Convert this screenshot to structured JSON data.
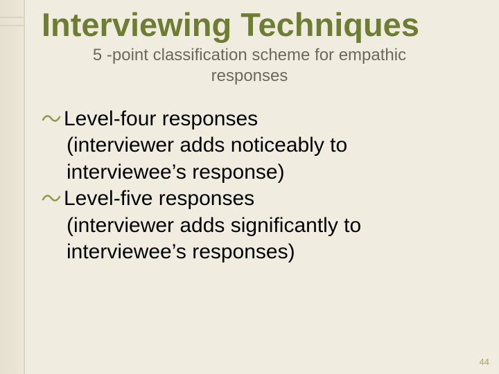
{
  "title": "Interviewing Techniques",
  "subtitle_line1": "5 -point classification scheme for empathic",
  "subtitle_line2": "responses",
  "bullets": [
    {
      "heading": "Level-four responses",
      "paren_line1": "(interviewer adds noticeably to",
      "paren_line2": "interviewee’s response)"
    },
    {
      "heading": "Level-five responses",
      "paren_line1": "(interviewer adds significantly to",
      "paren_line2": "interviewee’s responses)"
    }
  ],
  "bullet_glyph": "་",
  "page_number": "44",
  "colors": {
    "background": "#f0ecdf",
    "title": "#6d7e32",
    "subtitle": "#6a6a5a",
    "bullet_icon": "#8a9a4a",
    "page_num": "#b2a06a"
  }
}
